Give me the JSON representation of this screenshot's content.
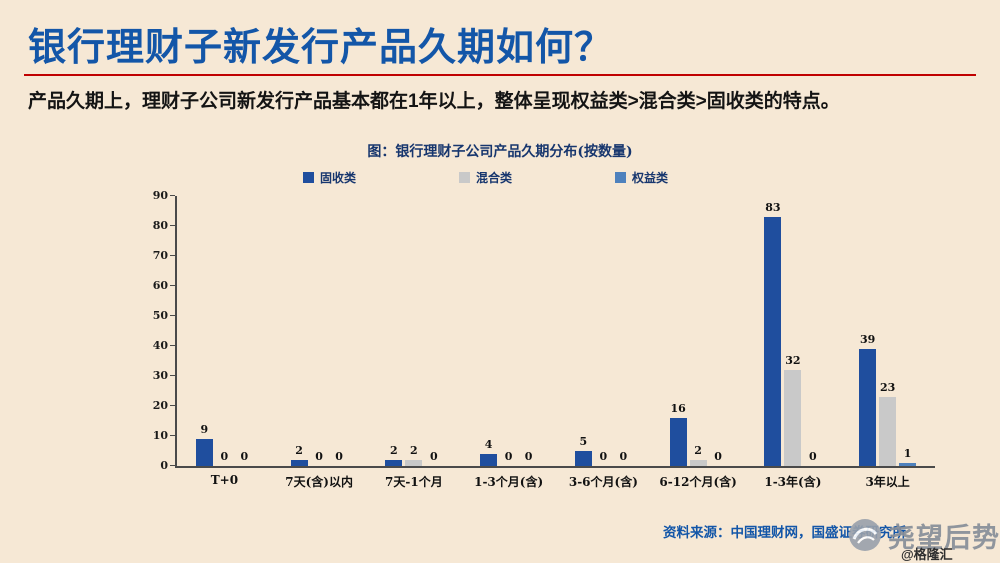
{
  "page": {
    "title": "银行理财子新发行产品久期如何？",
    "subtitle": "产品久期上，理财子公司新发行产品基本都在1年以上，整体呈现权益类>混合类>固收类的特点。",
    "source": "资料来源：中国理财网，国盛证券研究所",
    "watermark": {
      "name": "尧望后势",
      "handle": "@格隆汇",
      "logo_icon": "swirl-circle-icon"
    }
  },
  "colors": {
    "background": "#f6e8d5",
    "title_blue": "#1356a8",
    "rule_red": "#c00000",
    "axis": "#4a4a4a"
  },
  "chart_data": {
    "type": "bar",
    "title": "图：银行理财子公司产品久期分布(按数量)",
    "categories": [
      "T+0",
      "7天(含)以内",
      "7天-1个月",
      "1-3个月(含)",
      "3-6个月(含)",
      "6-12个月(含)",
      "1-3年(含)",
      "3年以上"
    ],
    "series": [
      {
        "name": "固收类",
        "color": "#1f4e9e",
        "values": [
          9,
          2,
          2,
          4,
          5,
          16,
          83,
          39
        ]
      },
      {
        "name": "混合类",
        "color": "#c9c9c9",
        "values": [
          0,
          0,
          2,
          0,
          0,
          2,
          32,
          23
        ]
      },
      {
        "name": "权益类",
        "color": "#4e81bd",
        "values": [
          0,
          0,
          0,
          0,
          0,
          0,
          0,
          1
        ]
      }
    ],
    "xlabel": "",
    "ylabel": "",
    "ylim": [
      0,
      90
    ],
    "ytick_step": 10,
    "grid": false,
    "legend_position": "top",
    "value_labels": true
  }
}
